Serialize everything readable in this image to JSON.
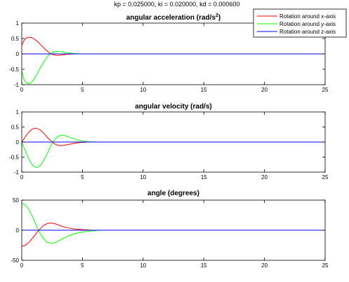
{
  "suptitle": "kp = 0.025000,  ki = 0.020000,  kd = 0.000600",
  "colors": {
    "x": "#ff0000",
    "y": "#00ff00",
    "z": "#0000ff"
  },
  "legend": {
    "placement": "top-right",
    "entries": [
      "Rotation around x-axis",
      "Rotation around y-axis",
      "Rotation around z-axis"
    ]
  },
  "chart_data": [
    {
      "type": "line",
      "title": "angular acceleration (rad/s²)",
      "title_main": "angular acceleration (rad/s",
      "title_sup": "2",
      "title_end": ")",
      "xlim": [
        0,
        25
      ],
      "ylim": [
        -1,
        1
      ],
      "xticks": [
        "0",
        "5",
        "10",
        "15",
        "20",
        "25"
      ],
      "yticks": [
        "1",
        "0.5",
        "0",
        "-0.5",
        "-1"
      ],
      "series": [
        {
          "name": "Rotation around x-axis",
          "color": "#ff0000",
          "x": [
            0,
            0.2,
            0.4,
            0.6,
            0.8,
            1.0,
            1.3,
            1.6,
            2.0,
            2.4,
            2.7,
            3.0,
            3.4,
            3.8,
            4.2,
            4.8,
            5.5,
            6.5,
            8,
            25
          ],
          "y": [
            0.28,
            0.45,
            0.52,
            0.54,
            0.53,
            0.49,
            0.4,
            0.28,
            0.12,
            0.0,
            -0.04,
            -0.05,
            -0.03,
            -0.01,
            0.0,
            0.0,
            0.0,
            0.0,
            0.0,
            0.0
          ]
        },
        {
          "name": "Rotation around y-axis",
          "color": "#00ff00",
          "x": [
            0,
            0.2,
            0.4,
            0.6,
            0.8,
            1.0,
            1.3,
            1.6,
            2.0,
            2.4,
            2.8,
            3.1,
            3.5,
            3.9,
            4.3,
            4.8,
            5.5,
            6.5,
            8,
            25
          ],
          "y": [
            -0.55,
            -0.85,
            -0.95,
            -0.97,
            -0.93,
            -0.82,
            -0.62,
            -0.4,
            -0.15,
            0.03,
            0.08,
            0.08,
            0.06,
            0.03,
            0.01,
            0.0,
            0.0,
            0.0,
            0.0,
            0.0
          ]
        },
        {
          "name": "Rotation around z-axis",
          "color": "#0000ff",
          "x": [
            0,
            25
          ],
          "y": [
            0,
            0
          ]
        }
      ]
    },
    {
      "type": "line",
      "title": "angular velocity (rad/s)",
      "xlim": [
        0,
        25
      ],
      "ylim": [
        -1,
        1
      ],
      "xticks": [
        "0",
        "5",
        "10",
        "15",
        "20",
        "25"
      ],
      "yticks": [
        "1",
        "0.5",
        "0",
        "-0.5",
        "-1"
      ],
      "series": [
        {
          "name": "Rotation around x-axis",
          "color": "#ff0000",
          "x": [
            0,
            0.3,
            0.6,
            0.9,
            1.2,
            1.5,
            1.8,
            2.1,
            2.4,
            2.7,
            3.0,
            3.3,
            3.6,
            4.0,
            4.5,
            5.0,
            5.5,
            6.5,
            8,
            25
          ],
          "y": [
            0,
            0.18,
            0.34,
            0.44,
            0.46,
            0.41,
            0.3,
            0.16,
            0.04,
            -0.06,
            -0.11,
            -0.12,
            -0.1,
            -0.07,
            -0.03,
            -0.01,
            0.0,
            0.0,
            0.0,
            0.0
          ]
        },
        {
          "name": "Rotation around y-axis",
          "color": "#00ff00",
          "x": [
            0,
            0.3,
            0.6,
            0.9,
            1.2,
            1.5,
            1.8,
            2.1,
            2.4,
            2.7,
            3.0,
            3.3,
            3.6,
            4.0,
            4.5,
            5.0,
            5.5,
            6.5,
            8,
            25
          ],
          "y": [
            0,
            -0.3,
            -0.58,
            -0.78,
            -0.85,
            -0.8,
            -0.62,
            -0.38,
            -0.12,
            0.08,
            0.19,
            0.23,
            0.21,
            0.15,
            0.08,
            0.03,
            0.01,
            0.0,
            0.0,
            0.0
          ]
        },
        {
          "name": "Rotation around z-axis",
          "color": "#0000ff",
          "x": [
            0,
            25
          ],
          "y": [
            0,
            0
          ]
        }
      ]
    },
    {
      "type": "line",
      "title": "angle (degrees)",
      "xlim": [
        0,
        25
      ],
      "ylim": [
        -50,
        50
      ],
      "xticks": [
        "0",
        "5",
        "10",
        "15",
        "20",
        "25"
      ],
      "yticks": [
        "50",
        "0",
        "-50"
      ],
      "series": [
        {
          "name": "Rotation around x-axis",
          "color": "#ff0000",
          "x": [
            0,
            0.3,
            0.6,
            0.9,
            1.2,
            1.5,
            1.8,
            2.1,
            2.4,
            2.7,
            3.0,
            3.4,
            3.8,
            4.3,
            5.0,
            5.8,
            6.5,
            7.5,
            25
          ],
          "y": [
            -27,
            -25,
            -20,
            -13,
            -5,
            2,
            8,
            11,
            12,
            11,
            9,
            6,
            4,
            2,
            1,
            0,
            0,
            0,
            0
          ]
        },
        {
          "name": "Rotation around y-axis",
          "color": "#00ff00",
          "x": [
            0,
            0.3,
            0.6,
            0.9,
            1.2,
            1.5,
            1.8,
            2.1,
            2.4,
            2.7,
            3.0,
            3.4,
            3.8,
            4.3,
            5.0,
            5.8,
            6.5,
            7.5,
            25
          ],
          "y": [
            45,
            42,
            34,
            22,
            8,
            -5,
            -14,
            -20,
            -22,
            -21,
            -18,
            -14,
            -10,
            -6,
            -3,
            -1,
            0,
            0,
            0
          ]
        },
        {
          "name": "Rotation around z-axis",
          "color": "#0000ff",
          "x": [
            0,
            25
          ],
          "y": [
            0,
            0
          ]
        }
      ]
    }
  ]
}
